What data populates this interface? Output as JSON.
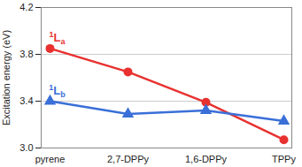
{
  "chart_data": {
    "type": "line",
    "y_label": "Excitation energy (eV)",
    "categories": [
      "pyrene",
      "2,7-DPPy",
      "1,6-DPPy",
      "TPPy"
    ],
    "series": [
      {
        "name": "1La",
        "color": "#e8312f",
        "marker": "circle",
        "values": [
          3.85,
          3.65,
          3.39,
          3.07
        ]
      },
      {
        "name": "1Lb",
        "color": "#3a6fd8",
        "marker": "triangle",
        "values": [
          3.4,
          3.29,
          3.32,
          3.23
        ]
      }
    ],
    "ylim": [
      3.0,
      4.2
    ],
    "yticks": [
      {
        "value": 3.0,
        "label": "3.0"
      },
      {
        "value": 3.4,
        "label": "3.4"
      },
      {
        "value": 3.8,
        "label": "3.8"
      },
      {
        "value": 4.2,
        "label": "4.2"
      }
    ],
    "grid": true
  }
}
